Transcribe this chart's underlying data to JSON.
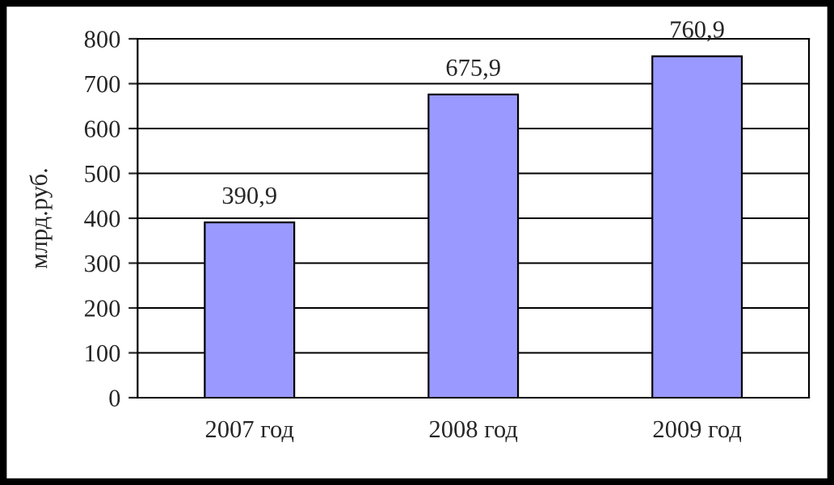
{
  "chart_data": {
    "type": "bar",
    "ylabel": "млрд.руб.",
    "categories": [
      "2007 год",
      "2008 год",
      "2009 год"
    ],
    "values": [
      390.9,
      675.9,
      760.9
    ],
    "value_labels": [
      "390,9",
      "675,9",
      "760,9"
    ],
    "color": "#9999ff",
    "ylim": [
      0,
      800
    ],
    "yticks": [
      0,
      100,
      200,
      300,
      400,
      500,
      600,
      700,
      800
    ],
    "grid": "y",
    "legend": false
  }
}
